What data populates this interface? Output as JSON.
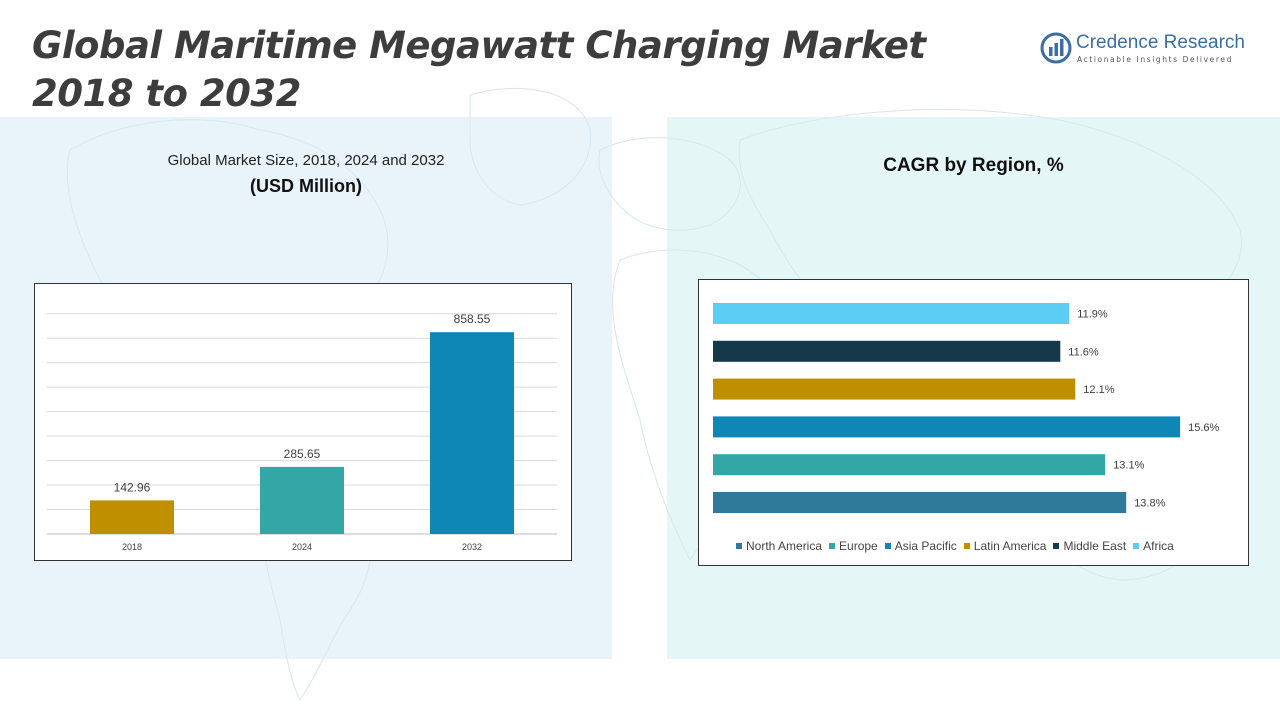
{
  "header": {
    "title_line1": "Global Maritime Megawatt Charging Market",
    "title_line2": "2018 to 2032"
  },
  "logo": {
    "name": "Credence Research",
    "tagline": "Actionable Insights Delivered",
    "icon": "credence-logo-icon"
  },
  "colors": {
    "gold": "#bf8f00",
    "teal": "#33a6a6",
    "blue": "#0e86b6",
    "navy": "#15394b",
    "sky": "#5ccdf5",
    "steel": "#2f7a9b"
  },
  "left_chart": {
    "subtitle": "Global Market Size, 2018, 2024 and 2032",
    "unit": "(USD Million)"
  },
  "right_chart": {
    "title": "CAGR by Region, %"
  },
  "chart_data": [
    {
      "type": "bar",
      "categories": [
        "2018",
        "2024",
        "2032"
      ],
      "values": [
        142.96,
        285.65,
        858.55
      ],
      "value_labels": [
        "142.96",
        "285.65",
        "858.55"
      ],
      "colors": [
        "#bf8f00",
        "#33a6a6",
        "#0e86b6"
      ],
      "title": "Global Market Size, 2018, 2024 and 2032",
      "ylabel": "(USD Million)",
      "ylim": [
        0,
        1000
      ],
      "grid": true
    },
    {
      "type": "bar",
      "orientation": "horizontal",
      "title": "CAGR by Region, %",
      "categories": [
        "North America",
        "Europe",
        "Asia Pacific",
        "Latin America",
        "Middle East",
        "Africa"
      ],
      "values": [
        13.8,
        13.1,
        15.6,
        12.1,
        11.6,
        11.9
      ],
      "value_labels": [
        "13.8%",
        "13.1%",
        "15.6%",
        "12.1%",
        "11.6%",
        "11.9%"
      ],
      "colors": [
        "#2f7a9b",
        "#33a6a6",
        "#0e86b6",
        "#bf8f00",
        "#15394b",
        "#5ccdf5"
      ],
      "xlim": [
        0,
        17.4
      ],
      "legend_position": "bottom",
      "grid": false
    }
  ]
}
